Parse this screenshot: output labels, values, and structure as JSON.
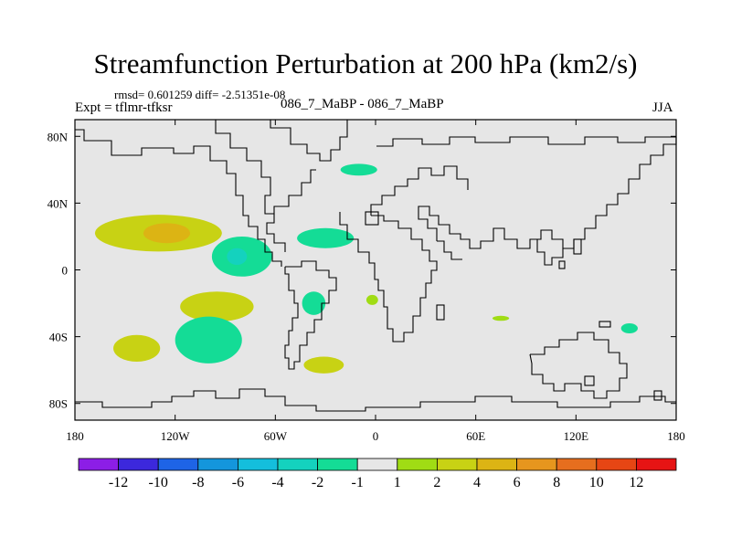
{
  "title": "Streamfunction Perturbation at 200 hPa (km2/s)",
  "stats": "rmsd= 0.601259 diff= -2.51351e-08",
  "expt": "Expt = tflmr-tfksr",
  "case_label": "086_7_MaBP - 086_7_MaBP",
  "season": "JJA",
  "x_ticks": [
    "180",
    "120W",
    "60W",
    "0",
    "60E",
    "120E",
    "180"
  ],
  "y_ticks": [
    "80N",
    "40N",
    "0",
    "40S",
    "80S"
  ],
  "colorbar": {
    "labels": [
      "-12",
      "-10",
      "-8",
      "-6",
      "-4",
      "-2",
      "-1",
      "1",
      "2",
      "4",
      "6",
      "8",
      "10",
      "12"
    ],
    "colors": [
      "#8c1ee6",
      "#3c28dc",
      "#1e64e6",
      "#1496dc",
      "#14bedc",
      "#14d2be",
      "#14dc96",
      "#e6e6e6",
      "#a0dc14",
      "#c8d214",
      "#dcb414",
      "#e6961e",
      "#e66e1e",
      "#e64614",
      "#e61414"
    ]
  },
  "chart_data": {
    "type": "heatmap",
    "title": "Streamfunction Perturbation at 200 hPa (km2/s)",
    "variable": "streamfunction perturbation",
    "level": "200 hPa",
    "units": "km2/s",
    "season": "JJA",
    "rmsd": 0.601259,
    "diff": -2.51351e-08,
    "xlim": [
      -180,
      180
    ],
    "ylim": [
      -90,
      90
    ],
    "levels": [
      -12,
      -10,
      -8,
      -6,
      -4,
      -2,
      -1,
      1,
      2,
      4,
      6,
      8,
      10,
      12
    ],
    "features": [
      {
        "name": "subtropical-north-pacific-high",
        "lon": -130,
        "lat": 22,
        "value": 3,
        "rx": 38,
        "ry": 11
      },
      {
        "name": "subtropical-north-pacific-core",
        "lon": -125,
        "lat": 22,
        "value": 4.5,
        "rx": 14,
        "ry": 6
      },
      {
        "name": "eastern-pacific-low",
        "lon": -80,
        "lat": 8,
        "value": -2,
        "rx": 18,
        "ry": 12
      },
      {
        "name": "eastern-pacific-low-core",
        "lon": -83,
        "lat": 8,
        "value": -3.5,
        "rx": 6,
        "ry": 5
      },
      {
        "name": "north-atlantic-low",
        "lon": -30,
        "lat": 19,
        "value": -2,
        "rx": 17,
        "ry": 6
      },
      {
        "name": "arctic-low",
        "lon": -10,
        "lat": 60,
        "value": -2,
        "rx": 11,
        "ry": 3.5
      },
      {
        "name": "south-pacific-high",
        "lon": -95,
        "lat": -22,
        "value": 2.5,
        "rx": 22,
        "ry": 9
      },
      {
        "name": "south-atlantic-low",
        "lon": -37,
        "lat": -20,
        "value": -2,
        "rx": 7,
        "ry": 7
      },
      {
        "name": "southeast-pacific-low",
        "lon": -100,
        "lat": -42,
        "value": -2,
        "rx": 20,
        "ry": 14
      },
      {
        "name": "southwest-pacific-high",
        "lon": -143,
        "lat": -47,
        "value": 2,
        "rx": 14,
        "ry": 8
      },
      {
        "name": "south-atlantic-high",
        "lon": -31,
        "lat": -57,
        "value": 2,
        "rx": 12,
        "ry": 5
      },
      {
        "name": "africa-small-high",
        "lon": -2,
        "lat": -18,
        "value": 1.5,
        "rx": 3.5,
        "ry": 3
      },
      {
        "name": "indian-ocean-high",
        "lon": 75,
        "lat": -29,
        "value": 1.5,
        "rx": 5,
        "ry": 1.5
      },
      {
        "name": "australia-east-low",
        "lon": 152,
        "lat": -35,
        "value": -1.5,
        "rx": 5,
        "ry": 3
      }
    ]
  }
}
